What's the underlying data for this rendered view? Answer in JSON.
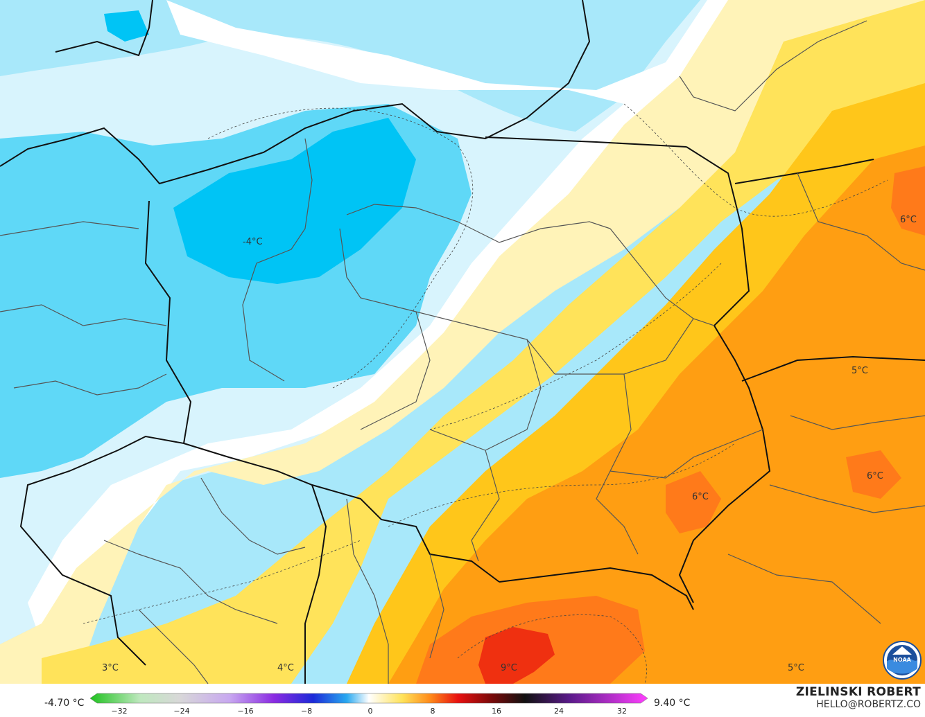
{
  "map": {
    "regions": [
      {
        "name": "cold-core",
        "value": -4
      },
      {
        "name": "warm-east",
        "value": 6
      },
      {
        "name": "hot-south",
        "value": 9
      }
    ],
    "labels": [
      {
        "text": "-4°C"
      },
      {
        "text": "6°C"
      },
      {
        "text": "5°C"
      },
      {
        "text": "6°C"
      },
      {
        "text": "6°C"
      },
      {
        "text": "3°C"
      },
      {
        "text": "4°C"
      },
      {
        "text": "9°C"
      },
      {
        "text": "5°C"
      }
    ]
  },
  "legend": {
    "min_label": "-4.70 °C",
    "max_label": "9.40 °C",
    "ticks": [
      "−32",
      "−24",
      "−16",
      "−8",
      "0",
      "8",
      "16",
      "24",
      "32"
    ],
    "colors": {
      "cold_deep": "#00c4f5",
      "cold": "#5fd8f7",
      "cool": "#a8e8fa",
      "chill": "#d8f4fd",
      "neutral": "#ffffff",
      "mild": "#fff3b8",
      "warm": "#ffe35a",
      "warmer": "#ffc61a",
      "hot": "#ff9e12",
      "hotter": "#ff7a1a",
      "hottest": "#ef3010"
    }
  },
  "credit": {
    "author": "ZIELINSKI ROBERT",
    "email": "HELLO@ROBERTZ.CO"
  },
  "logo": {
    "icon": "noaa-logo-icon"
  }
}
